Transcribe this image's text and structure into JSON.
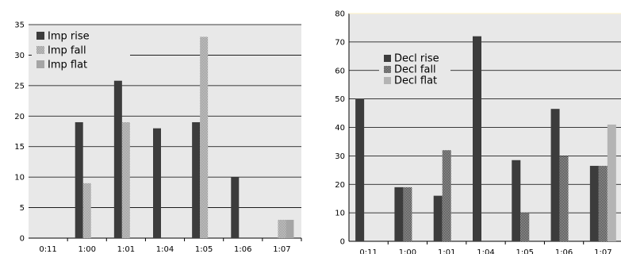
{
  "chart_data": [
    {
      "type": "bar",
      "categories": [
        "0:11",
        "1:00",
        "1:01",
        "1:04",
        "1:05",
        "1:06",
        "1:07"
      ],
      "series": [
        {
          "name": "Imp rise",
          "values": [
            0,
            19,
            25.8,
            18,
            19,
            10,
            0
          ],
          "color": "#3c3c3c",
          "pattern": "solid"
        },
        {
          "name": "Imp fall",
          "values": [
            0,
            9,
            19,
            0,
            33,
            0,
            3
          ],
          "color": "#8c8c8c",
          "pattern": "checker"
        },
        {
          "name": "Imp flat",
          "values": [
            0,
            0,
            0,
            0,
            0,
            0,
            3
          ],
          "color": "#a5a5a5",
          "pattern": "solid"
        }
      ],
      "ylim": [
        0,
        35
      ],
      "yticks": [
        0,
        5,
        10,
        15,
        20,
        25,
        30,
        35
      ],
      "grid": true,
      "legend_position": "top-left",
      "plot_background": "#e8e8e8"
    },
    {
      "type": "bar",
      "categories": [
        "0:11",
        "1:00",
        "1:01",
        "1:04",
        "1:05",
        "1:06",
        "1:07"
      ],
      "series": [
        {
          "name": "Decl rise",
          "values": [
            50,
            19,
            16,
            72,
            28.5,
            46.5,
            26.5
          ],
          "color": "#3c3c3c",
          "pattern": "solid"
        },
        {
          "name": "Decl fall",
          "values": [
            0,
            19,
            32,
            0,
            10,
            30,
            26.5
          ],
          "color": "#505050",
          "pattern": "checker"
        },
        {
          "name": "Decl flat",
          "values": [
            0,
            0,
            0,
            0,
            0,
            0,
            41
          ],
          "color": "#b4b4b4",
          "pattern": "solid"
        }
      ],
      "ylim": [
        0,
        80
      ],
      "yticks": [
        0,
        10,
        20,
        30,
        40,
        50,
        60,
        70,
        80
      ],
      "grid": true,
      "legend_position": "top-left",
      "plot_background": "#e8e8e8"
    }
  ]
}
